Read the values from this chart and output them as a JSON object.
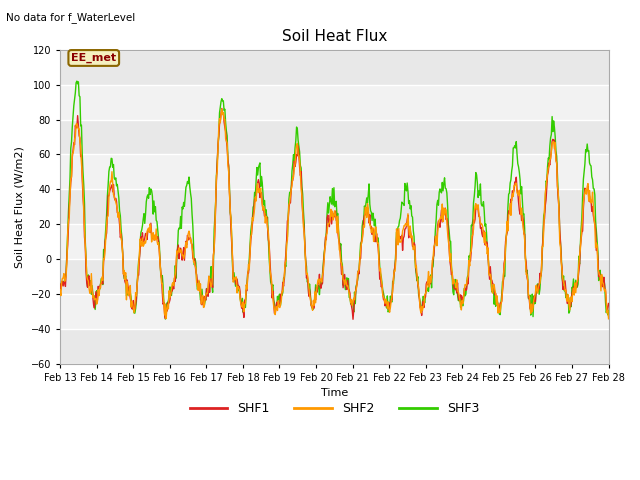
{
  "title": "Soil Heat Flux",
  "title_fontsize": 11,
  "top_left_text": "No data for f_WaterLevel",
  "ylabel": "Soil Heat Flux (W/m2)",
  "xlabel": "Time",
  "ylim": [
    -60,
    120
  ],
  "yticks": [
    -60,
    -40,
    -20,
    0,
    20,
    40,
    60,
    80,
    100,
    120
  ],
  "date_labels": [
    "Feb 13",
    "Feb 14",
    "Feb 15",
    "Feb 16",
    "Feb 17",
    "Feb 18",
    "Feb 19",
    "Feb 20",
    "Feb 21",
    "Feb 22",
    "Feb 23",
    "Feb 24",
    "Feb 25",
    "Feb 26",
    "Feb 27",
    "Feb 28"
  ],
  "shf1_color": "#dd2222",
  "shf2_color": "#ff9900",
  "shf3_color": "#33cc00",
  "legend_label1": "SHF1",
  "legend_label2": "SHF2",
  "legend_label3": "SHF3",
  "ee_met_label": "EE_met",
  "plot_bg_color": "#e8e8e8",
  "fig_bg_color": "#ffffff",
  "line_width": 1.0,
  "n_points": 720
}
